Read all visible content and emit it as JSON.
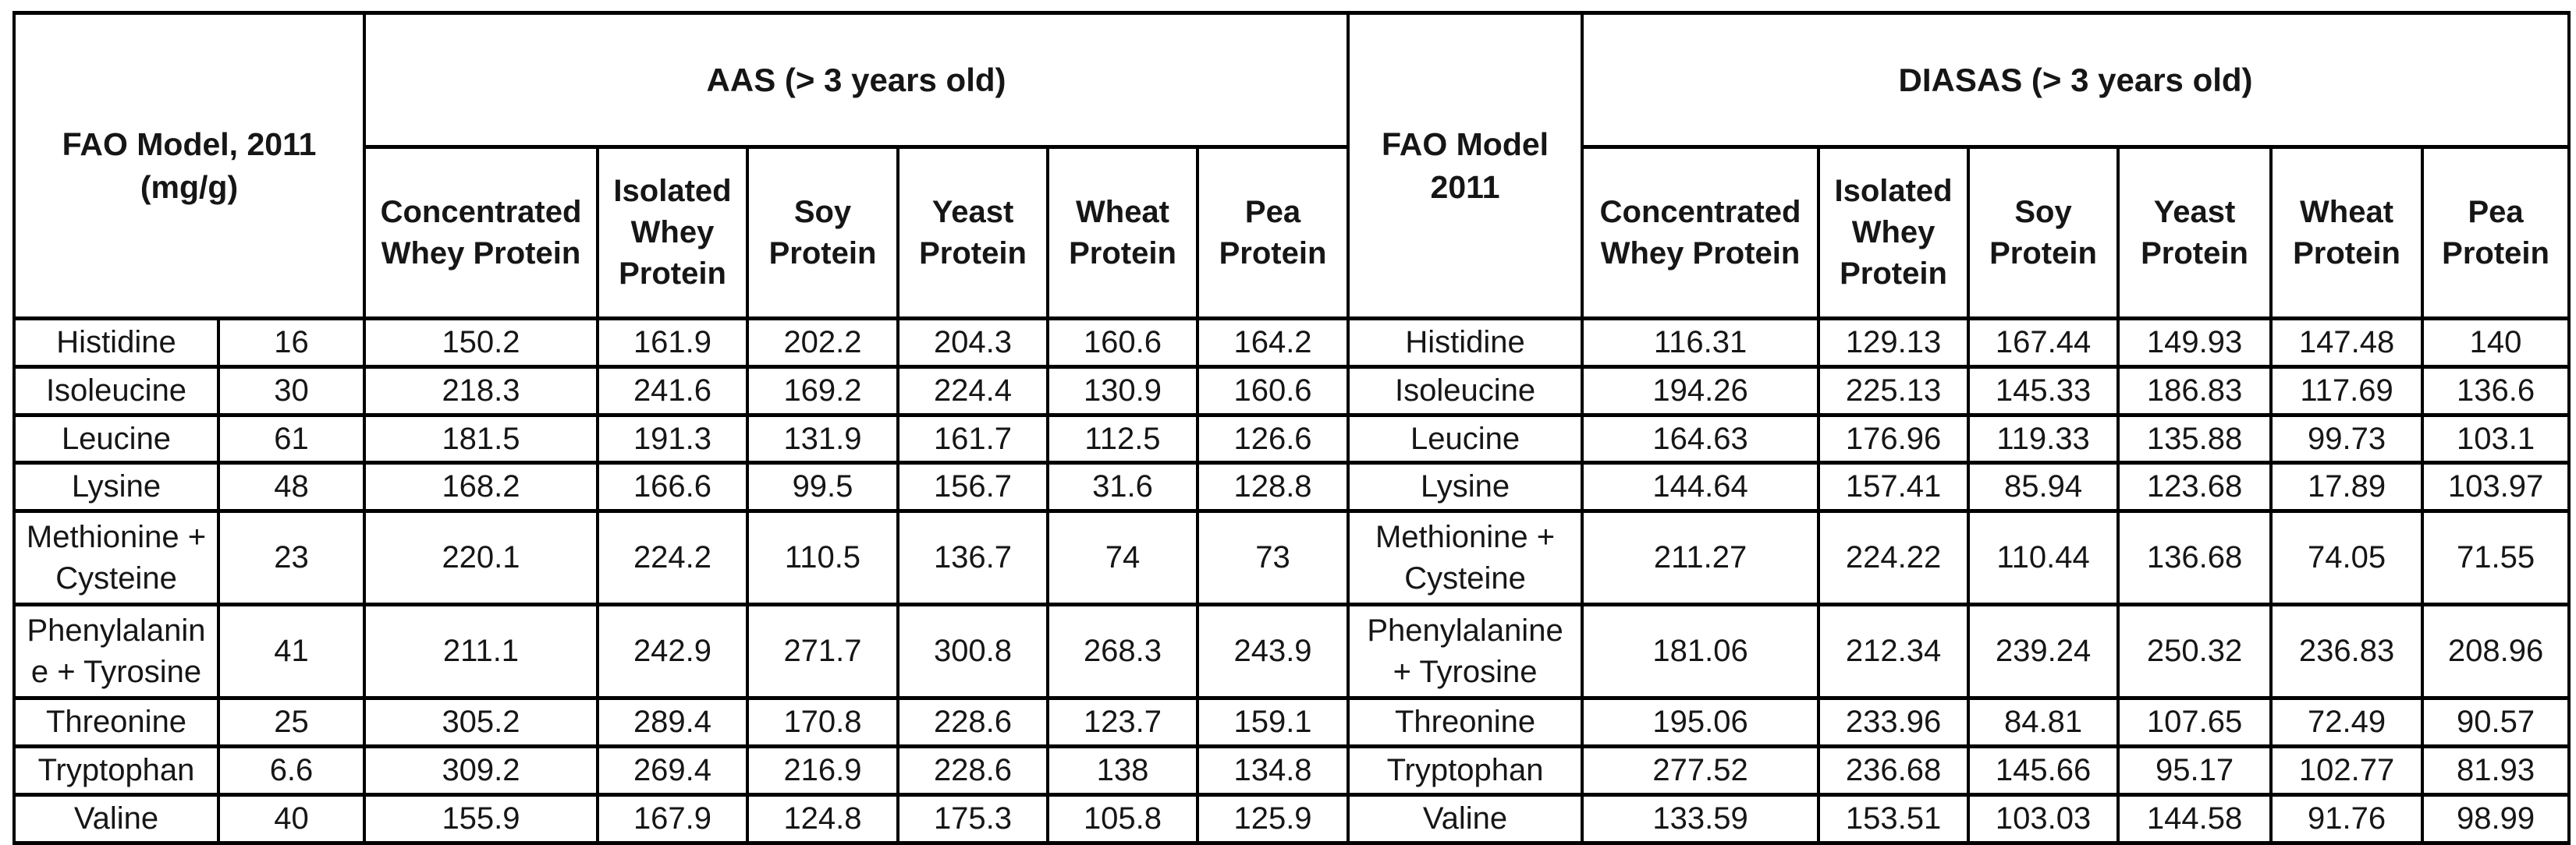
{
  "table": {
    "left_header": {
      "line1": "FAO Model, 2011",
      "line2": "(mg/g)"
    },
    "aas_section_header": "AAS (> 3 years old)",
    "middle_header": {
      "line1": "FAO Model",
      "line2": "2011"
    },
    "diasas_section_header": "DIASAS (> 3 years old)",
    "protein_columns": [
      "Concentrated Whey Protein",
      "Isolated Whey Protein",
      "Soy Protein",
      "Yeast Protein",
      "Wheat Protein",
      "Pea Protein"
    ],
    "rows": [
      {
        "amino_acid": "Histidine",
        "fao_value": "16",
        "aas": [
          "150.2",
          "161.9",
          "202.2",
          "204.3",
          "160.6",
          "164.2"
        ],
        "diasas": [
          "116.31",
          "129.13",
          "167.44",
          "149.93",
          "147.48",
          "140"
        ]
      },
      {
        "amino_acid": "Isoleucine",
        "fao_value": "30",
        "aas": [
          "218.3",
          "241.6",
          "169.2",
          "224.4",
          "130.9",
          "160.6"
        ],
        "diasas": [
          "194.26",
          "225.13",
          "145.33",
          "186.83",
          "117.69",
          "136.6"
        ]
      },
      {
        "amino_acid": "Leucine",
        "fao_value": "61",
        "aas": [
          "181.5",
          "191.3",
          "131.9",
          "161.7",
          "112.5",
          "126.6"
        ],
        "diasas": [
          "164.63",
          "176.96",
          "119.33",
          "135.88",
          "99.73",
          "103.1"
        ]
      },
      {
        "amino_acid": "Lysine",
        "fao_value": "48",
        "aas": [
          "168.2",
          "166.6",
          "99.5",
          "156.7",
          "31.6",
          "128.8"
        ],
        "diasas": [
          "144.64",
          "157.41",
          "85.94",
          "123.68",
          "17.89",
          "103.97"
        ]
      },
      {
        "amino_acid": "Methionine + Cysteine",
        "fao_value": "23",
        "aas": [
          "220.1",
          "224.2",
          "110.5",
          "136.7",
          "74",
          "73"
        ],
        "diasas": [
          "211.27",
          "224.22",
          "110.44",
          "136.68",
          "74.05",
          "71.55"
        ]
      },
      {
        "amino_acid": "Phenylalanine + Tyrosine",
        "fao_value": "41",
        "aas": [
          "211.1",
          "242.9",
          "271.7",
          "300.8",
          "268.3",
          "243.9"
        ],
        "diasas": [
          "181.06",
          "212.34",
          "239.24",
          "250.32",
          "236.83",
          "208.96"
        ]
      },
      {
        "amino_acid": "Threonine",
        "fao_value": "25",
        "aas": [
          "305.2",
          "289.4",
          "170.8",
          "228.6",
          "123.7",
          "159.1"
        ],
        "diasas": [
          "195.06",
          "233.96",
          "84.81",
          "107.65",
          "72.49",
          "90.57"
        ]
      },
      {
        "amino_acid": "Tryptophan",
        "fao_value": "6.6",
        "aas": [
          "309.2",
          "269.4",
          "216.9",
          "228.6",
          "138",
          "134.8"
        ],
        "diasas": [
          "277.52",
          "236.68",
          "145.66",
          "95.17",
          "102.77",
          "81.93"
        ]
      },
      {
        "amino_acid": "Valine",
        "fao_value": "40",
        "aas": [
          "155.9",
          "167.9",
          "124.8",
          "175.3",
          "105.8",
          "125.9"
        ],
        "diasas": [
          "133.59",
          "153.51",
          "103.03",
          "144.58",
          "91.76",
          "98.99"
        ]
      }
    ]
  },
  "colors": {
    "border": "#000000",
    "text": "#161616",
    "background": "#ffffff"
  }
}
